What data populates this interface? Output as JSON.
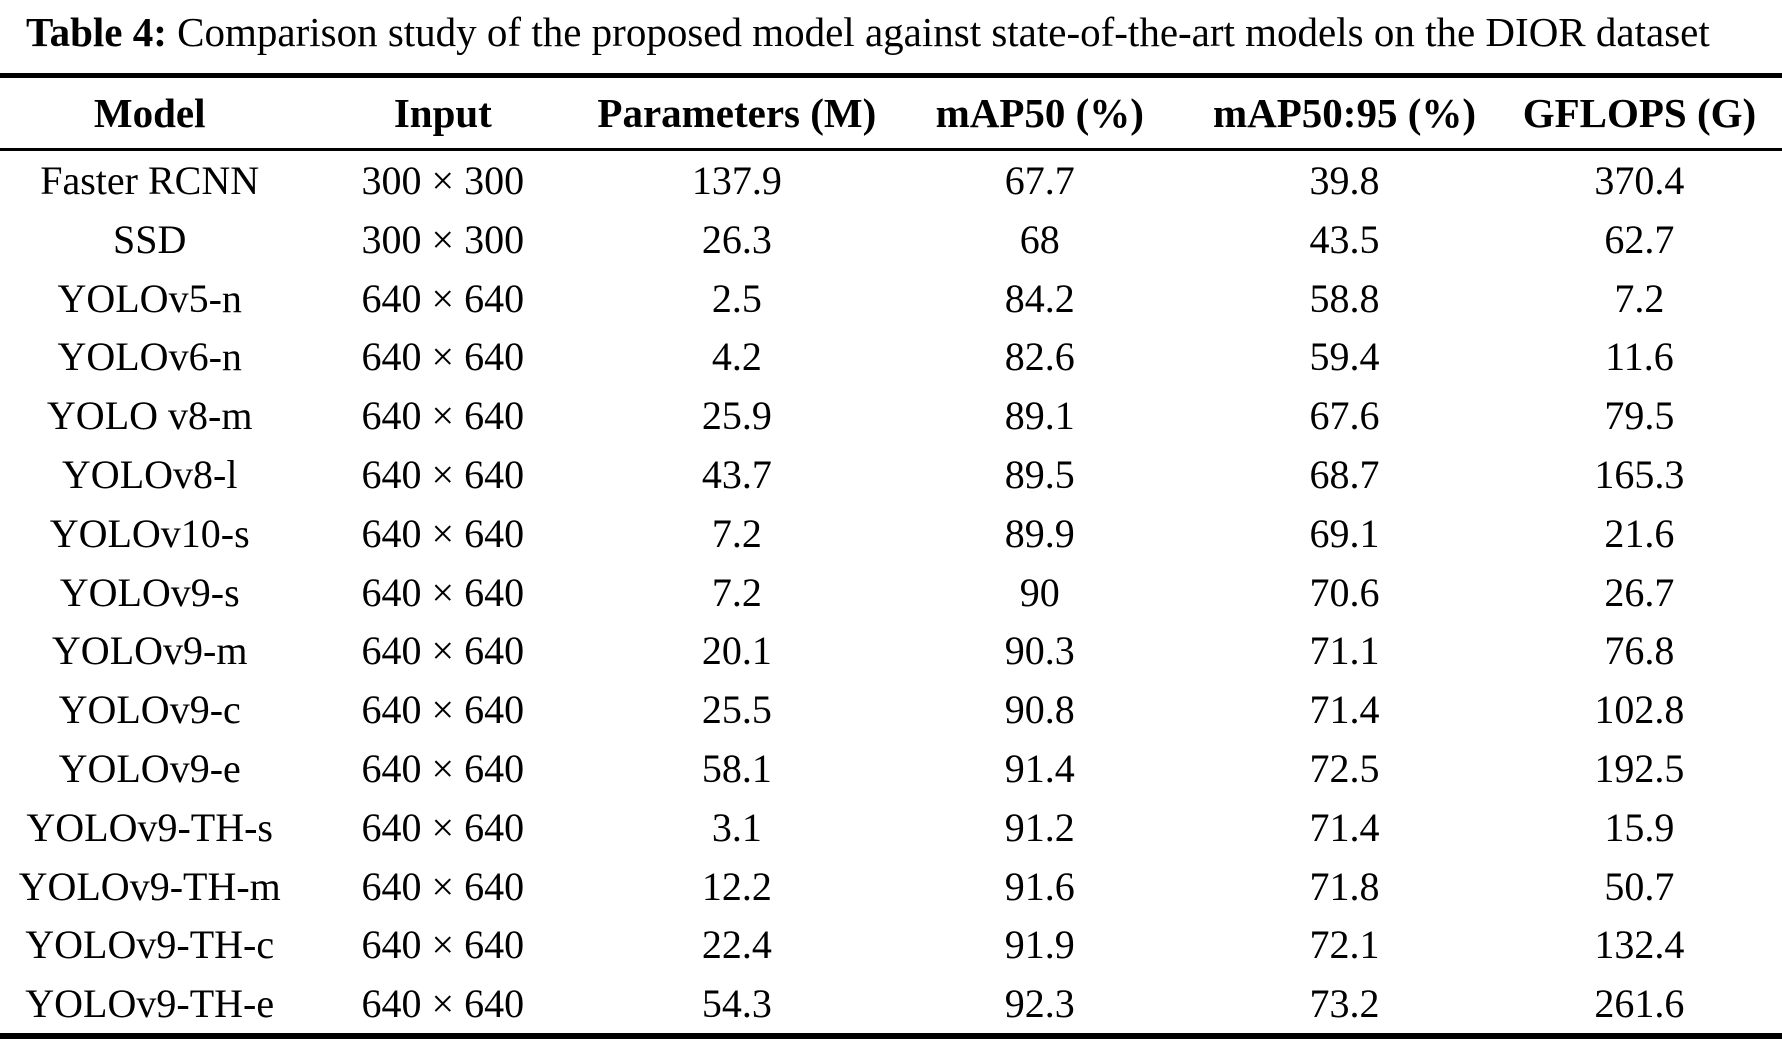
{
  "title": {
    "label": "Table 4:",
    "text": "Comparison study of the proposed model against state-of-the-art models on the DIOR dataset"
  },
  "table": {
    "columns": [
      "Model",
      "Input",
      "Parameters (M)",
      "mAP50 (%)",
      "mAP50:95 (%)",
      "GFLOPS (G)"
    ],
    "rows": [
      [
        "Faster RCNN",
        "300 × 300",
        "137.9",
        "67.7",
        "39.8",
        "370.4"
      ],
      [
        "SSD",
        "300 × 300",
        "26.3",
        "68",
        "43.5",
        "62.7"
      ],
      [
        "YOLOv5-n",
        "640 × 640",
        "2.5",
        "84.2",
        "58.8",
        "7.2"
      ],
      [
        "YOLOv6-n",
        "640 × 640",
        "4.2",
        "82.6",
        "59.4",
        "11.6"
      ],
      [
        "YOLO v8-m",
        "640 × 640",
        "25.9",
        "89.1",
        "67.6",
        "79.5"
      ],
      [
        "YOLOv8-l",
        "640 × 640",
        "43.7",
        "89.5",
        "68.7",
        "165.3"
      ],
      [
        "YOLOv10-s",
        "640 × 640",
        "7.2",
        "89.9",
        "69.1",
        "21.6"
      ],
      [
        "YOLOv9-s",
        "640 × 640",
        "7.2",
        "90",
        "70.6",
        "26.7"
      ],
      [
        "YOLOv9-m",
        "640 × 640",
        "20.1",
        "90.3",
        "71.1",
        "76.8"
      ],
      [
        "YOLOv9-c",
        "640 × 640",
        "25.5",
        "90.8",
        "71.4",
        "102.8"
      ],
      [
        "YOLOv9-e",
        "640 × 640",
        "58.1",
        "91.4",
        "72.5",
        "192.5"
      ],
      [
        "YOLOv9-TH-s",
        "640 × 640",
        "3.1",
        "91.2",
        "71.4",
        "15.9"
      ],
      [
        "YOLOv9-TH-m",
        "640 × 640",
        "12.2",
        "91.6",
        "71.8",
        "50.7"
      ],
      [
        "YOLOv9-TH-c",
        "640 × 640",
        "22.4",
        "91.9",
        "72.1",
        "132.4"
      ],
      [
        "YOLOv9-TH-e",
        "640 × 640",
        "54.3",
        "92.3",
        "73.2",
        "261.6"
      ]
    ]
  },
  "chart_data": {
    "type": "table",
    "title": "Table 4: Comparison study of the proposed model against state-of-the-art models on the DIOR dataset",
    "columns": [
      "Model",
      "Input",
      "Parameters (M)",
      "mAP50 (%)",
      "mAP50:95 (%)",
      "GFLOPS (G)"
    ],
    "rows": [
      [
        "Faster RCNN",
        "300 × 300",
        137.9,
        67.7,
        39.8,
        370.4
      ],
      [
        "SSD",
        "300 × 300",
        26.3,
        68,
        43.5,
        62.7
      ],
      [
        "YOLOv5-n",
        "640 × 640",
        2.5,
        84.2,
        58.8,
        7.2
      ],
      [
        "YOLOv6-n",
        "640 × 640",
        4.2,
        82.6,
        59.4,
        11.6
      ],
      [
        "YOLO v8-m",
        "640 × 640",
        25.9,
        89.1,
        67.6,
        79.5
      ],
      [
        "YOLOv8-l",
        "640 × 640",
        43.7,
        89.5,
        68.7,
        165.3
      ],
      [
        "YOLOv10-s",
        "640 × 640",
        7.2,
        89.9,
        69.1,
        21.6
      ],
      [
        "YOLOv9-s",
        "640 × 640",
        7.2,
        90,
        70.6,
        26.7
      ],
      [
        "YOLOv9-m",
        "640 × 640",
        20.1,
        90.3,
        71.1,
        76.8
      ],
      [
        "YOLOv9-c",
        "640 × 640",
        25.5,
        90.8,
        71.4,
        102.8
      ],
      [
        "YOLOv9-e",
        "640 × 640",
        58.1,
        91.4,
        72.5,
        192.5
      ],
      [
        "YOLOv9-TH-s",
        "640 × 640",
        3.1,
        91.2,
        71.4,
        15.9
      ],
      [
        "YOLOv9-TH-m",
        "640 × 640",
        12.2,
        91.6,
        71.8,
        50.7
      ],
      [
        "YOLOv9-TH-c",
        "640 × 640",
        22.4,
        91.9,
        72.1,
        132.4
      ],
      [
        "YOLOv9-TH-e",
        "640 × 640",
        54.3,
        92.3,
        73.2,
        261.6
      ]
    ]
  }
}
